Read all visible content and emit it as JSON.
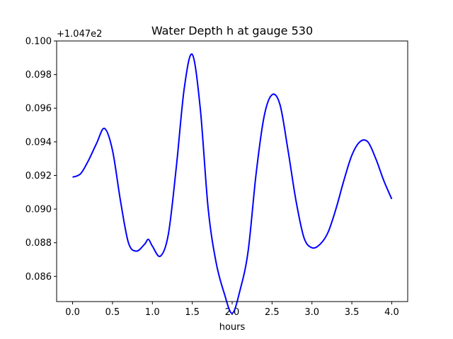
{
  "chart_data": {
    "type": "line",
    "title": "Water Depth h at gauge 530",
    "xlabel": "hours",
    "ylabel": "",
    "offset_label": "+1.047e2",
    "xlim": [
      -0.2,
      4.2
    ],
    "ylim": [
      0.0845,
      0.1
    ],
    "x_ticks": [
      0.0,
      0.5,
      1.0,
      1.5,
      2.0,
      2.5,
      3.0,
      3.5,
      4.0
    ],
    "x_tick_labels": [
      "0.0",
      "0.5",
      "1.0",
      "1.5",
      "2.0",
      "2.5",
      "3.0",
      "3.5",
      "4.0"
    ],
    "y_ticks": [
      0.086,
      0.088,
      0.09,
      0.092,
      0.094,
      0.096,
      0.098,
      0.1
    ],
    "y_tick_labels": [
      "0.086",
      "0.088",
      "0.090",
      "0.092",
      "0.094",
      "0.096",
      "0.098",
      "0.100"
    ],
    "grid": false,
    "series": [
      {
        "color": "#0000ff",
        "x": [
          0.0,
          0.1,
          0.2,
          0.3,
          0.4,
          0.5,
          0.6,
          0.7,
          0.8,
          0.9,
          0.95,
          1.0,
          1.1,
          1.2,
          1.3,
          1.4,
          1.5,
          1.6,
          1.7,
          1.8,
          1.9,
          2.0,
          2.1,
          2.2,
          2.3,
          2.4,
          2.5,
          2.6,
          2.7,
          2.8,
          2.9,
          3.0,
          3.1,
          3.2,
          3.3,
          3.4,
          3.5,
          3.6,
          3.7,
          3.8,
          3.9,
          4.0
        ],
        "y": [
          0.0919,
          0.0921,
          0.0929,
          0.0939,
          0.0948,
          0.0935,
          0.0905,
          0.088,
          0.0875,
          0.0879,
          0.0882,
          0.0878,
          0.0872,
          0.0885,
          0.0925,
          0.0972,
          0.0992,
          0.096,
          0.09,
          0.0868,
          0.085,
          0.0838,
          0.0852,
          0.0875,
          0.0921,
          0.0955,
          0.0968,
          0.0962,
          0.0935,
          0.0905,
          0.0883,
          0.0877,
          0.0879,
          0.0886,
          0.09,
          0.0917,
          0.0932,
          0.094,
          0.094,
          0.093,
          0.0917,
          0.0906
        ]
      }
    ]
  }
}
